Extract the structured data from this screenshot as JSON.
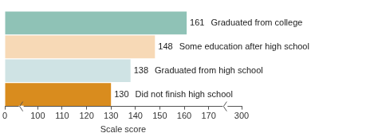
{
  "chart_data": {
    "type": "bar",
    "orientation": "horizontal",
    "categories": [
      "Graduated from college",
      "Some education after high school",
      "Graduated from high school",
      "Did not finish high school"
    ],
    "values": [
      161,
      148,
      138,
      130
    ],
    "colors": [
      "#8fc2b6",
      "#f7d9b6",
      "#cfe3e4",
      "#d98c1e"
    ],
    "xlabel": "Scale score",
    "xlim": [
      0,
      300
    ],
    "xticks": [
      0,
      100,
      110,
      120,
      130,
      140,
      150,
      160,
      170,
      300
    ],
    "grid": false,
    "data_labels": true,
    "tick_labels": "x"
  }
}
